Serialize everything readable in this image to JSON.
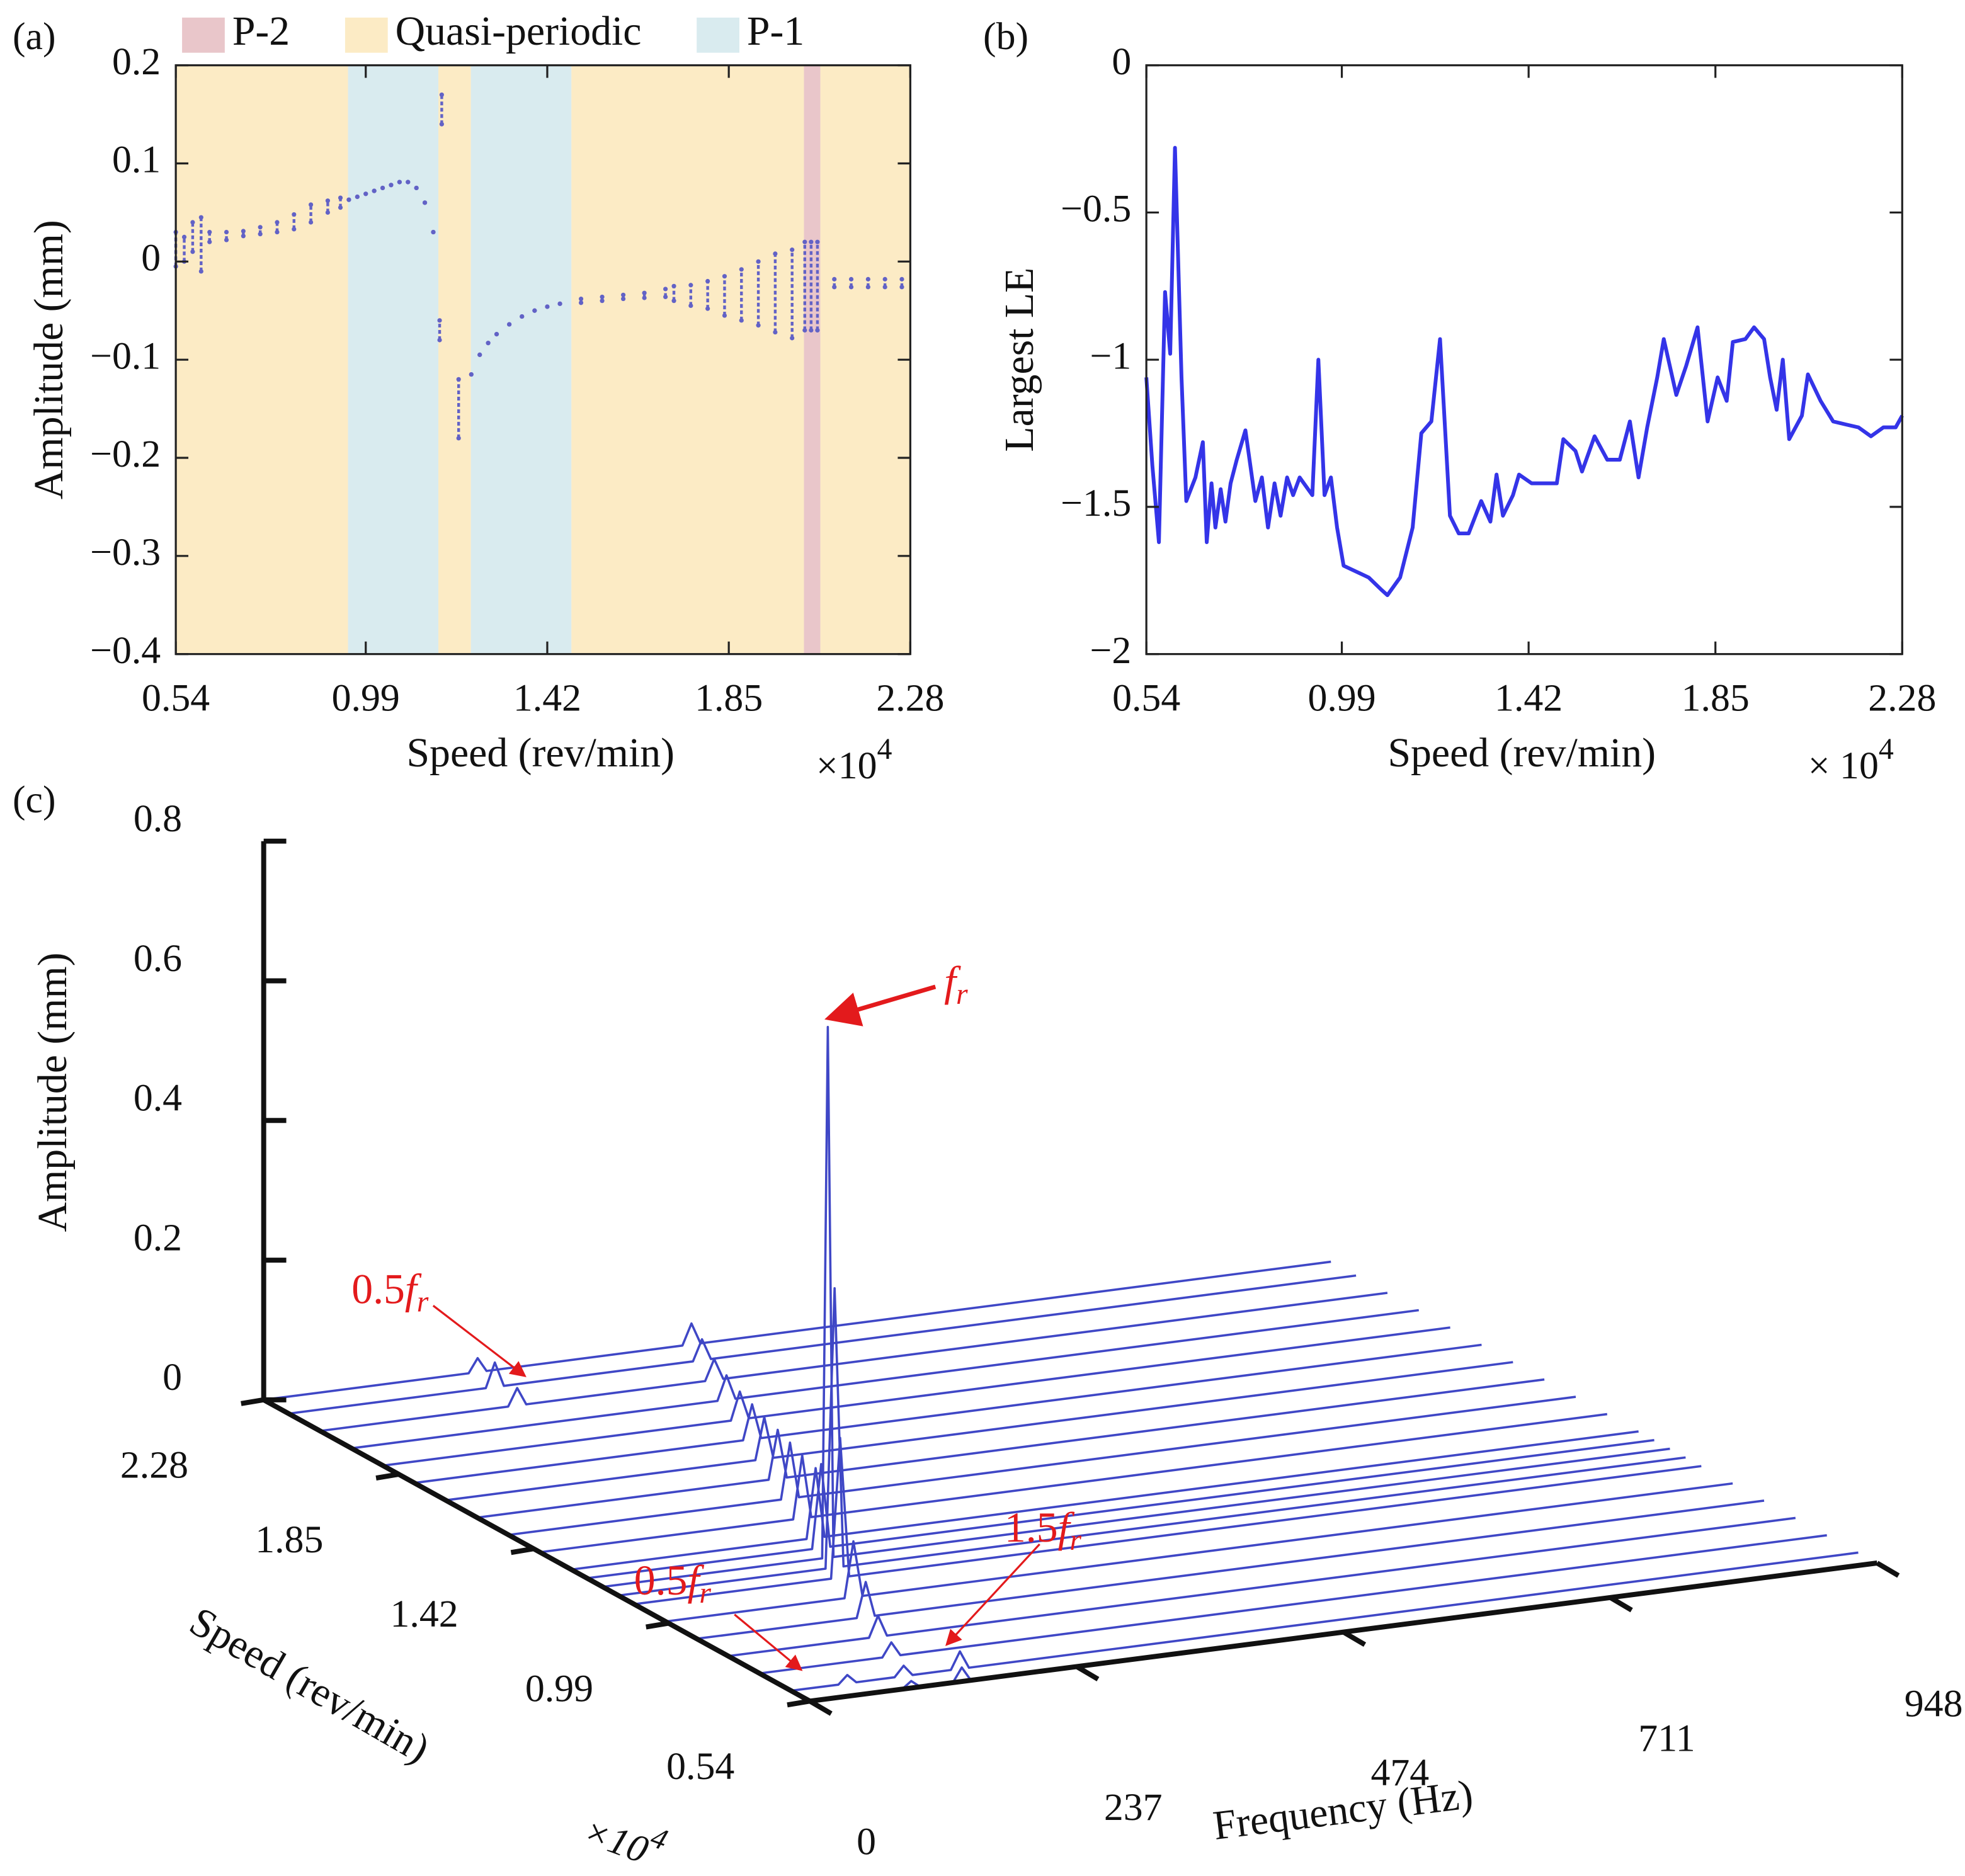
{
  "chart_data": [
    {
      "type": "scatter",
      "panel_label": "(a)",
      "x_label": "Speed (rev/min)",
      "y_label": "Amplitude (mm)",
      "x_scale_label": "×10",
      "x_scale_exponent": "4",
      "xlim": [
        0.54,
        2.28
      ],
      "ylim": [
        -0.4,
        0.2
      ],
      "xticks": [
        0.54,
        0.99,
        1.42,
        1.85,
        2.28
      ],
      "yticks": [
        {
          "value": -0.4,
          "label": "−0.4"
        },
        {
          "value": -0.3,
          "label": "−0.3"
        },
        {
          "value": -0.2,
          "label": "−0.2"
        },
        {
          "value": -0.1,
          "label": "−0.1"
        },
        0,
        0.1,
        0.2
      ],
      "series": [
        {
          "name": "P-2",
          "color": "#e9c6ca",
          "spans": [
            [
              2.028,
              2.067
            ]
          ]
        },
        {
          "name": "Quasi-periodic",
          "color": "#fcebc5",
          "spans": [
            [
              0.54,
              0.948
            ],
            [
              1.162,
              1.239
            ],
            [
              1.477,
              2.028
            ],
            [
              2.067,
              2.28
            ]
          ]
        },
        {
          "name": "P-1",
          "color": "#d9ebef",
          "spans": [
            [
              0.948,
              1.162
            ],
            [
              1.239,
              1.477
            ]
          ]
        }
      ],
      "point_color": "#6262c6",
      "x": [
        0.54,
        0.56,
        0.58,
        0.6,
        0.62,
        0.66,
        0.7,
        0.74,
        0.78,
        0.82,
        0.86,
        0.9,
        0.93,
        0.95,
        0.97,
        0.99,
        1.01,
        1.03,
        1.05,
        1.07,
        1.09,
        1.11,
        1.13,
        1.15,
        1.165,
        1.17,
        1.21,
        1.24,
        1.26,
        1.28,
        1.3,
        1.33,
        1.36,
        1.39,
        1.42,
        1.45,
        1.5,
        1.55,
        1.6,
        1.65,
        1.7,
        1.72,
        1.76,
        1.8,
        1.84,
        1.88,
        1.92,
        1.96,
        2.0,
        2.03,
        2.045,
        2.06,
        2.1,
        2.14,
        2.18,
        2.22,
        2.26
      ],
      "low": [
        -0.005,
        0,
        0.01,
        -0.01,
        0.02,
        0.022,
        0.026,
        0.028,
        0.03,
        0.033,
        0.04,
        0.05,
        0.055,
        0.063,
        0.066,
        0.069,
        0.072,
        0.075,
        0.078,
        0.081,
        0.081,
        0.075,
        0.06,
        0.03,
        -0.08,
        0.14,
        -0.18,
        -0.115,
        -0.095,
        -0.083,
        -0.074,
        -0.064,
        -0.056,
        -0.05,
        -0.046,
        -0.043,
        -0.042,
        -0.04,
        -0.038,
        -0.037,
        -0.036,
        -0.04,
        -0.045,
        -0.048,
        -0.055,
        -0.06,
        -0.065,
        -0.072,
        -0.078,
        -0.07,
        -0.07,
        -0.07,
        -0.026,
        -0.026,
        -0.026,
        -0.026,
        -0.026
      ],
      "high": [
        0.03,
        0.025,
        0.04,
        0.045,
        0.03,
        0.03,
        0.031,
        0.035,
        0.04,
        0.048,
        0.058,
        0.062,
        0.065,
        0.063,
        0.066,
        0.069,
        0.072,
        0.075,
        0.078,
        0.081,
        0.081,
        0.075,
        0.06,
        0.03,
        -0.06,
        0.17,
        -0.12,
        -0.115,
        -0.095,
        -0.083,
        -0.074,
        -0.064,
        -0.056,
        -0.05,
        -0.046,
        -0.043,
        -0.038,
        -0.036,
        -0.034,
        -0.032,
        -0.028,
        -0.025,
        -0.024,
        -0.02,
        -0.015,
        -0.008,
        0,
        0.008,
        0.012,
        0.02,
        0.02,
        0.02,
        -0.018,
        -0.018,
        -0.018,
        -0.018,
        -0.018
      ]
    },
    {
      "type": "line",
      "panel_label": "(b)",
      "x_label": "Speed (rev/min)",
      "y_label": "Largest LE",
      "x_scale_label": "× 10",
      "x_scale_exponent": "4",
      "xlim": [
        0.54,
        2.28
      ],
      "ylim": [
        -2,
        0
      ],
      "xticks": [
        0.54,
        0.99,
        1.42,
        1.85,
        2.28
      ],
      "yticks": [
        {
          "value": -2,
          "label": "−2"
        },
        {
          "value": -1.5,
          "label": "−1.5"
        },
        {
          "value": -1,
          "label": "−1"
        },
        {
          "value": -0.5,
          "label": "−0.5"
        },
        0
      ],
      "color": "#3434e8",
      "x": [
        0.54,
        0.554,
        0.569,
        0.583,
        0.595,
        0.606,
        0.621,
        0.632,
        0.653,
        0.67,
        0.679,
        0.69,
        0.699,
        0.711,
        0.722,
        0.734,
        0.748,
        0.768,
        0.791,
        0.806,
        0.82,
        0.835,
        0.849,
        0.864,
        0.878,
        0.893,
        0.922,
        0.936,
        0.95,
        0.965,
        0.979,
        0.994,
        1.023,
        1.052,
        1.08,
        1.095,
        1.124,
        1.153,
        1.173,
        1.196,
        1.216,
        1.239,
        1.259,
        1.282,
        1.311,
        1.332,
        1.346,
        1.361,
        1.384,
        1.398,
        1.427,
        1.456,
        1.485,
        1.5,
        1.528,
        1.543,
        1.572,
        1.601,
        1.63,
        1.653,
        1.673,
        1.693,
        1.716,
        1.731,
        1.76,
        1.783,
        1.809,
        1.832,
        1.855,
        1.876,
        1.89,
        1.919,
        1.939,
        1.962,
        1.976,
        1.991,
        2.005,
        2.02,
        2.049,
        2.063,
        2.092,
        2.121,
        2.15,
        2.179,
        2.208,
        2.237,
        2.265,
        2.28
      ],
      "values": [
        -1.06,
        -1.36,
        -1.62,
        -0.77,
        -0.98,
        -0.28,
        -1.06,
        -1.48,
        -1.4,
        -1.28,
        -1.62,
        -1.42,
        -1.57,
        -1.44,
        -1.55,
        -1.42,
        -1.34,
        -1.24,
        -1.48,
        -1.4,
        -1.57,
        -1.42,
        -1.53,
        -1.4,
        -1.46,
        -1.4,
        -1.46,
        -1.0,
        -1.46,
        -1.4,
        -1.57,
        -1.7,
        -1.72,
        -1.74,
        -1.78,
        -1.8,
        -1.74,
        -1.57,
        -1.25,
        -1.21,
        -0.93,
        -1.53,
        -1.59,
        -1.59,
        -1.48,
        -1.55,
        -1.39,
        -1.53,
        -1.46,
        -1.39,
        -1.42,
        -1.42,
        -1.42,
        -1.27,
        -1.31,
        -1.38,
        -1.26,
        -1.34,
        -1.34,
        -1.21,
        -1.4,
        -1.23,
        -1.06,
        -0.93,
        -1.12,
        -1.02,
        -0.89,
        -1.21,
        -1.06,
        -1.14,
        -0.94,
        -0.93,
        -0.89,
        -0.93,
        -1.06,
        -1.17,
        -1.0,
        -1.27,
        -1.19,
        -1.05,
        -1.14,
        -1.21,
        -1.22,
        -1.23,
        -1.26,
        -1.23,
        -1.23,
        -1.19
      ]
    },
    {
      "type": "waterfall",
      "panel_label": "(c)",
      "x_label": "Frequency (Hz)",
      "y_label": "Speed (rev/min)",
      "z_label": "Amplitude (mm)",
      "y_scale_label": "×10",
      "y_scale_exponent": "4",
      "xlim": [
        0,
        948
      ],
      "ylim": [
        0.54,
        2.28
      ],
      "zlim": [
        0,
        0.8
      ],
      "xticks": [
        0,
        237,
        474,
        711,
        948
      ],
      "yticks": [
        0.54,
        0.99,
        1.42,
        1.85,
        2.28
      ],
      "zticks": [
        0,
        0.2,
        0.4,
        0.6,
        0.8
      ],
      "color": "#3f47c6",
      "spectra": [
        {
          "speed": 2.28,
          "f": [
            0,
            182,
            190,
            198,
            372,
            380,
            388,
            948
          ],
          "amp": [
            0,
            0,
            0.02,
            0,
            0,
            0.03,
            0,
            0
          ]
        },
        {
          "speed": 2.2,
          "f": [
            0,
            175,
            183,
            191,
            359,
            367,
            375,
            948
          ],
          "amp": [
            0,
            0,
            0.035,
            0,
            0,
            0.03,
            0,
            0
          ]
        },
        {
          "speed": 2.1,
          "f": [
            0,
            167,
            175,
            183,
            342,
            350,
            358,
            948
          ],
          "amp": [
            0,
            0,
            0.025,
            0,
            0,
            0.03,
            0,
            0
          ]
        },
        {
          "speed": 2.0,
          "f": [
            0,
            325,
            333,
            341,
            948
          ],
          "amp": [
            0,
            0,
            0.035,
            0,
            0
          ]
        },
        {
          "speed": 1.9,
          "f": [
            0,
            309,
            317,
            325,
            948
          ],
          "amp": [
            0,
            0,
            0.04,
            0,
            0
          ]
        },
        {
          "speed": 1.8,
          "f": [
            0,
            292,
            300,
            308,
            948
          ],
          "amp": [
            0,
            0,
            0.05,
            0,
            0
          ]
        },
        {
          "speed": 1.7,
          "f": [
            0,
            275,
            283,
            291,
            948
          ],
          "amp": [
            0,
            0,
            0.06,
            0,
            0
          ]
        },
        {
          "speed": 1.6,
          "f": [
            0,
            259,
            267,
            275,
            948
          ],
          "amp": [
            0,
            0,
            0.07,
            0,
            0
          ]
        },
        {
          "speed": 1.5,
          "f": [
            0,
            242,
            250,
            258,
            948
          ],
          "amp": [
            0,
            0,
            0.08,
            0,
            0
          ]
        },
        {
          "speed": 1.4,
          "f": [
            0,
            225,
            233,
            241,
            948
          ],
          "amp": [
            0,
            0,
            0.09,
            0,
            0
          ]
        },
        {
          "speed": 1.3,
          "f": [
            0,
            209,
            217,
            225,
            948
          ],
          "amp": [
            0,
            0,
            0.1,
            0,
            0
          ]
        },
        {
          "speed": 1.25,
          "f": [
            0,
            200,
            208,
            216,
            948
          ],
          "amp": [
            0,
            0,
            0.12,
            0,
            0
          ]
        },
        {
          "speed": 1.2,
          "f": [
            0,
            195,
            200,
            205,
            948
          ],
          "amp": [
            0,
            0,
            0.76,
            0,
            0
          ]
        },
        {
          "speed": 1.15,
          "f": [
            0,
            184,
            192,
            200,
            948
          ],
          "amp": [
            0,
            0,
            0.4,
            0,
            0
          ]
        },
        {
          "speed": 1.1,
          "f": [
            0,
            175,
            183,
            191,
            948
          ],
          "amp": [
            0,
            0,
            0.2,
            0,
            0
          ]
        },
        {
          "speed": 1.0,
          "f": [
            0,
            159,
            167,
            175,
            948
          ],
          "amp": [
            0,
            0,
            0.08,
            0,
            0
          ]
        },
        {
          "speed": 0.9,
          "f": [
            0,
            142,
            150,
            158,
            948
          ],
          "amp": [
            0,
            0,
            0.05,
            0,
            0
          ]
        },
        {
          "speed": 0.8,
          "f": [
            0,
            125,
            133,
            141,
            948
          ],
          "amp": [
            0,
            0,
            0.03,
            0,
            0
          ]
        },
        {
          "speed": 0.7,
          "f": [
            0,
            109,
            117,
            125,
            948
          ],
          "amp": [
            0,
            0,
            0.02,
            0,
            0
          ]
        },
        {
          "speed": 0.6,
          "f": [
            0,
            42,
            50,
            58,
            92,
            100,
            108,
            142,
            150,
            158,
            948
          ],
          "amp": [
            0,
            0,
            0.012,
            0,
            0,
            0.015,
            0,
            0,
            0.025,
            0,
            0
          ]
        },
        {
          "speed": 0.54,
          "f": [
            0,
            82,
            90,
            98,
            127,
            135,
            143,
            948
          ],
          "amp": [
            0,
            0,
            0.01,
            0,
            0,
            0.02,
            0,
            0
          ]
        }
      ],
      "annotation_color": "#e31a1c",
      "annotations": [
        {
          "italic": "f",
          "sub": "r"
        },
        {
          "text": "0.5",
          "italic": "f",
          "sub": "r"
        },
        {
          "text": "1.5",
          "italic": "f",
          "sub": "r"
        },
        {
          "text": "0.5",
          "italic": "f",
          "sub": "r"
        }
      ]
    }
  ]
}
